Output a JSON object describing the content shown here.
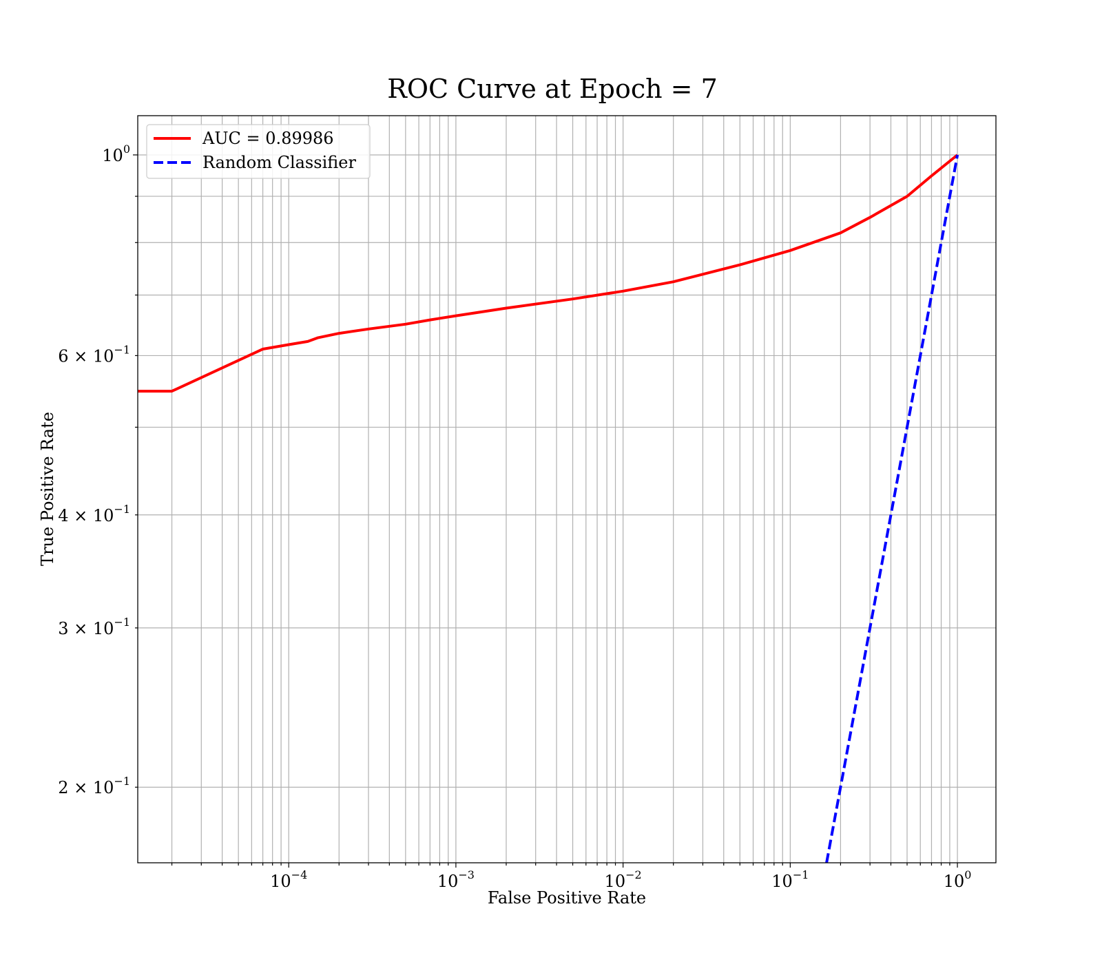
{
  "chart_data": {
    "type": "line",
    "title": "ROC Curve at Epoch = 7",
    "xlabel": "False Positive Rate",
    "ylabel": "True Positive Rate",
    "xscale": "log",
    "yscale": "log",
    "xlim": [
      1.25e-05,
      1.7
    ],
    "ylim": [
      0.165,
      1.105
    ],
    "grid": "both major and minor",
    "legend_position": "top-left",
    "x_ticks": [
      {
        "base": "10",
        "exp": "−4",
        "value": 0.0001
      },
      {
        "base": "10",
        "exp": "−3",
        "value": 0.001
      },
      {
        "base": "10",
        "exp": "−2",
        "value": 0.01
      },
      {
        "base": "10",
        "exp": "−1",
        "value": 0.1
      },
      {
        "base": "10",
        "exp": "0",
        "value": 1
      }
    ],
    "y_ticks": [
      {
        "mant": "2 × ",
        "base": "10",
        "exp": "−1",
        "value": 0.2
      },
      {
        "mant": "3 × ",
        "base": "10",
        "exp": "−1",
        "value": 0.3
      },
      {
        "mant": "4 × ",
        "base": "10",
        "exp": "−1",
        "value": 0.4
      },
      {
        "mant": "6 × ",
        "base": "10",
        "exp": "−1",
        "value": 0.6
      },
      {
        "mant": "",
        "base": "10",
        "exp": "0",
        "value": 1
      }
    ],
    "series": [
      {
        "name": "AUC = 0.89986",
        "color": "#ff0000",
        "style": "solid",
        "x": [
          1.25e-05,
          2e-05,
          7e-05,
          0.0001,
          0.00013,
          0.00015,
          0.0002,
          0.0003,
          0.0005,
          0.0007,
          0.001,
          0.002,
          0.005,
          0.01,
          0.02,
          0.05,
          0.1,
          0.2,
          0.3,
          0.5,
          0.7,
          1.0
        ],
        "y": [
          0.548,
          0.548,
          0.61,
          0.617,
          0.622,
          0.628,
          0.635,
          0.642,
          0.65,
          0.657,
          0.664,
          0.677,
          0.693,
          0.707,
          0.724,
          0.756,
          0.784,
          0.82,
          0.853,
          0.9,
          0.948,
          1.0
        ]
      },
      {
        "name": "Random Classifier",
        "color": "#0000ff",
        "style": "dashed",
        "x": [
          0.165,
          1.0
        ],
        "y": [
          0.165,
          1.0
        ]
      }
    ]
  }
}
